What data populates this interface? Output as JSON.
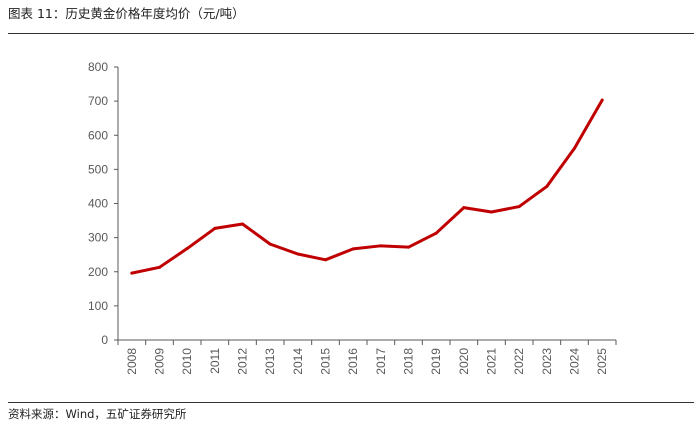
{
  "header": {
    "figure_title": "图表 11：历史黄金价格年度均价（元/吨）"
  },
  "footer": {
    "source": "资料来源：Wind，五矿证券研究所"
  },
  "chart_data": {
    "type": "line",
    "title": "图表 11：历史黄金价格年度均价（元/吨）",
    "xlabel": "",
    "ylabel": "",
    "x": [
      "2008",
      "2009",
      "2010",
      "2011",
      "2012",
      "2013",
      "2014",
      "2015",
      "2016",
      "2017",
      "2018",
      "2019",
      "2020",
      "2021",
      "2022",
      "2023",
      "2024",
      "2025"
    ],
    "series": [
      {
        "values": [
          196,
          213,
          268,
          327,
          340,
          281,
          252,
          235,
          267,
          276,
          272,
          313,
          388,
          375,
          391,
          450,
          562,
          703
        ]
      }
    ],
    "ylim": [
      0,
      800
    ],
    "yticks": [
      0,
      100,
      200,
      300,
      400,
      500,
      600,
      700,
      800
    ],
    "grid": false,
    "legend": "none",
    "line_color": "#C00000"
  }
}
